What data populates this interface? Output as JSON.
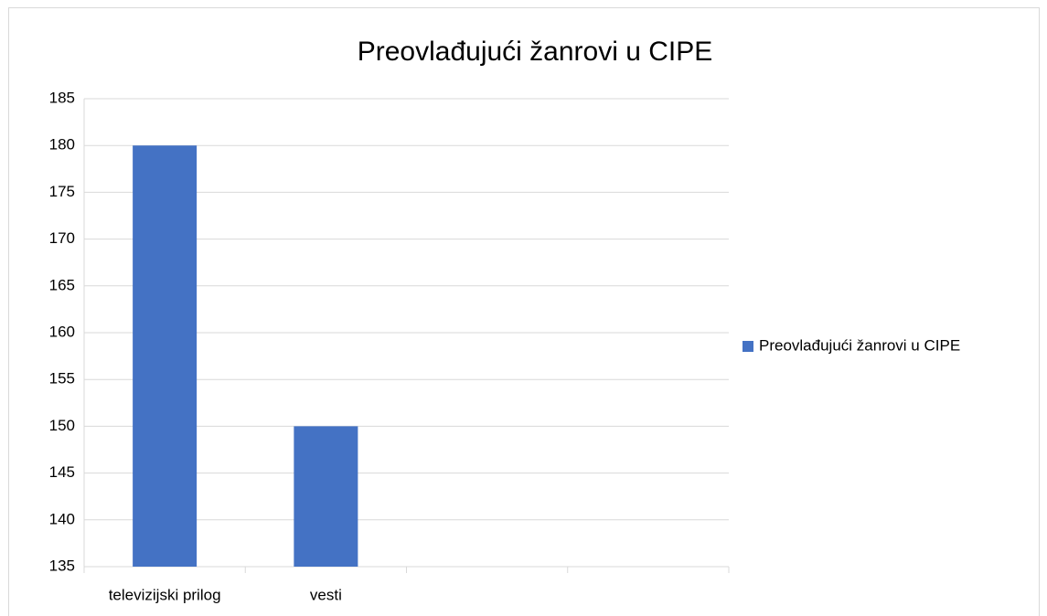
{
  "chart_data": {
    "type": "bar",
    "title": "Preovlađujući žanrovi u CIPE",
    "categories": [
      "televizijski prilog",
      "vesti",
      null,
      null
    ],
    "series": [
      {
        "name": "Preovlađujući žanrovi u CIPE",
        "color": "#4472c4",
        "values": [
          180,
          150,
          null,
          null
        ]
      }
    ],
    "ylim": [
      135,
      185
    ],
    "yticks": [
      135,
      140,
      145,
      150,
      155,
      160,
      165,
      170,
      175,
      180,
      185
    ],
    "grid": true,
    "legend": "right"
  }
}
